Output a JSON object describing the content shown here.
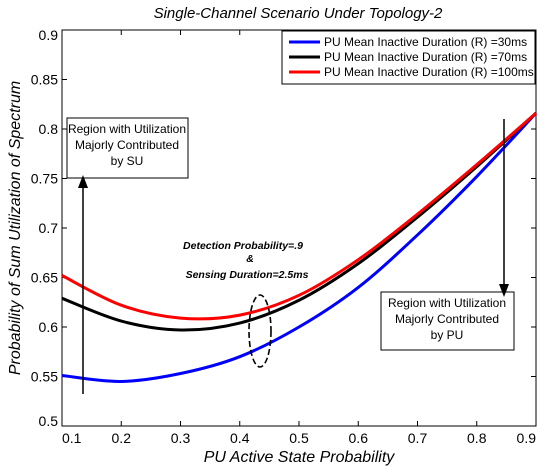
{
  "chart_data": {
    "type": "line",
    "title": "Single-Channel Scenario Under Topology-2",
    "xlabel": "PU Active State Probability",
    "ylabel": "Probability of Sum Utilization of Spectrum",
    "xlim": [
      0.1,
      0.9
    ],
    "ylim": [
      0.5,
      0.9
    ],
    "xticks": [
      "0.1",
      "0.2",
      "0.3",
      "0.4",
      "0.5",
      "0.6",
      "0.7",
      "0.8",
      "0.9"
    ],
    "yticks": [
      "0.5",
      "0.55",
      "0.6",
      "0.65",
      "0.7",
      "0.75",
      "0.8",
      "0.85",
      "0.9"
    ],
    "grid": false,
    "legend_position": "top-right",
    "x": [
      0.1,
      0.2,
      0.3,
      0.4,
      0.5,
      0.6,
      0.7,
      0.8,
      0.9
    ],
    "series": [
      {
        "name": "PU Mean Inactive Duration (R) =30ms",
        "color": "#0000ff",
        "values": [
          0.551,
          0.545,
          0.553,
          0.57,
          0.6,
          0.64,
          0.693,
          0.752,
          0.816
        ]
      },
      {
        "name": "PU Mean Inactive Duration (R) =70ms",
        "color": "#000000",
        "values": [
          0.629,
          0.606,
          0.597,
          0.604,
          0.627,
          0.664,
          0.711,
          0.762,
          0.816
        ]
      },
      {
        "name": "PU Mean Inactive Duration (R) =100ms",
        "color": "#ff0000",
        "values": [
          0.652,
          0.622,
          0.609,
          0.612,
          0.632,
          0.668,
          0.714,
          0.764,
          0.816
        ]
      }
    ],
    "annotations": {
      "left_box": [
        "Region with Utilization",
        "Majorly Contributed",
        "by SU"
      ],
      "right_box": [
        "Region with Utilization",
        "Majorly Contributed",
        "by PU"
      ],
      "center": [
        "Detection Probability=.9",
        "&",
        "Sensing Duration=2.5ms"
      ]
    }
  }
}
